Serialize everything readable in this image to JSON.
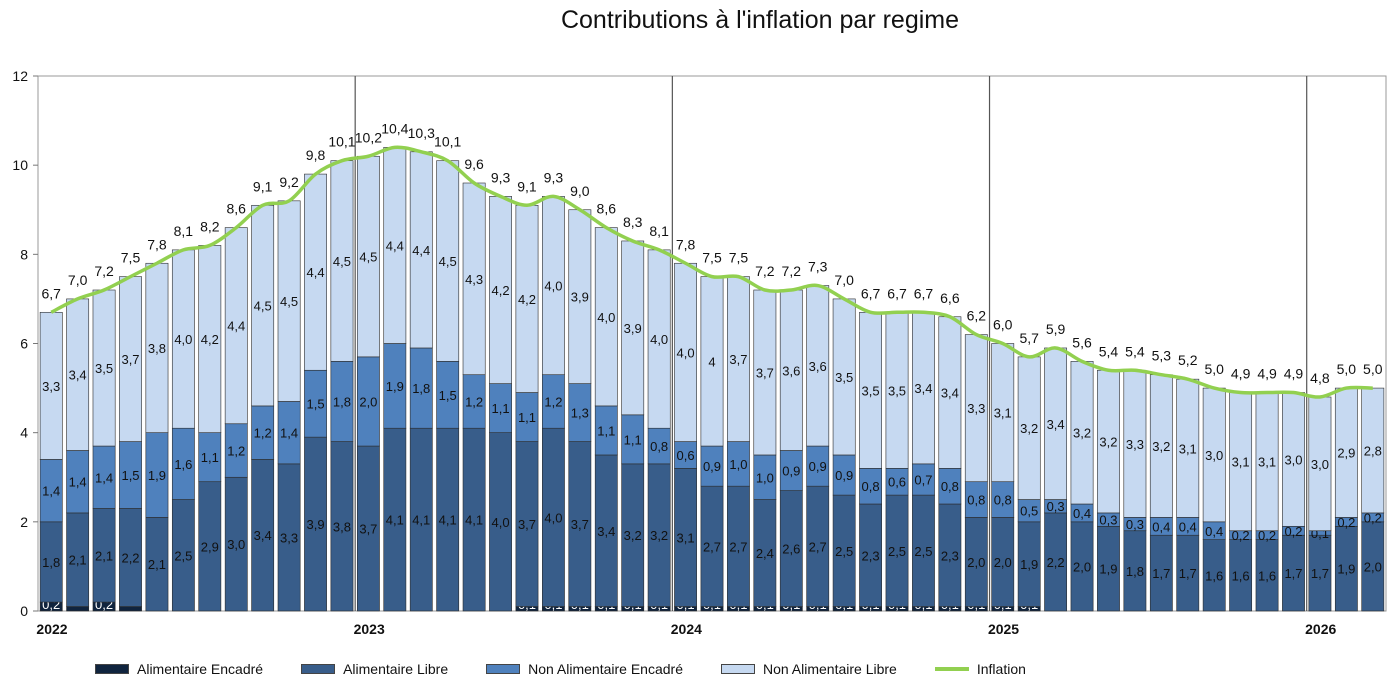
{
  "chart_data": {
    "type": "bar",
    "stacked": true,
    "title": "Contributions à l'inflation par regime",
    "xlabel": "",
    "ylabel": "",
    "ylim": [
      0,
      12
    ],
    "yticks": [
      "0",
      "2",
      "4",
      "6",
      "8",
      "10",
      "12"
    ],
    "year_labels": [
      {
        "label": "2022",
        "index": 0
      },
      {
        "label": "2023",
        "index": 12
      },
      {
        "label": "2024",
        "index": 24
      },
      {
        "label": "2025",
        "index": 36
      },
      {
        "label": "2026",
        "index": 48
      }
    ],
    "legend_position": "bottom",
    "series": [
      {
        "name": "Alimentaire Encadré",
        "color": "#10243E",
        "values": [
          0.2,
          0.1,
          0.2,
          0.1,
          0,
          0,
          0,
          0,
          0,
          0,
          0,
          0,
          0,
          0,
          0,
          0,
          0,
          0,
          0.1,
          0.1,
          0.1,
          0.1,
          0.1,
          0.1,
          0.1,
          0.1,
          0.1,
          0.1,
          0.1,
          0.1,
          0.1,
          0.1,
          0.1,
          0.1,
          0.1,
          0.1,
          0.1,
          0.1,
          0,
          0,
          0,
          0,
          0,
          0,
          0,
          0,
          0,
          0,
          0,
          0,
          0
        ],
        "labels": [
          "0,2",
          "",
          "0,2",
          "",
          "0,0",
          "",
          "0,0",
          "",
          "0,0",
          "",
          "0,0",
          "",
          "0,0",
          "0,0",
          "0,0",
          "0,0",
          "0,0",
          "0,0",
          "0,1",
          "0,1",
          "0,1",
          "0,1",
          "0,1",
          "0,1",
          "0,1",
          "0,1",
          "0,1",
          "0,1",
          "0,1",
          "0,1",
          "0,1",
          "0,1",
          "0,1",
          "0,1",
          "0,1",
          "0,1",
          "0,1",
          "0,1",
          "0,0",
          "0,0",
          "0,0",
          "0,0",
          "0,0",
          "0,0",
          "0,0",
          "0,0",
          "0,0",
          "0,0",
          "0,0",
          "0,0",
          "0,0"
        ]
      },
      {
        "name": "Alimentaire Libre",
        "color": "#385D8A",
        "values": [
          1.8,
          2.1,
          2.1,
          2.2,
          2.1,
          2.5,
          2.9,
          3.0,
          3.4,
          3.3,
          3.9,
          3.8,
          3.7,
          4.1,
          4.1,
          4.1,
          4.1,
          4.0,
          3.7,
          4.0,
          3.7,
          3.4,
          3.2,
          3.2,
          3.1,
          2.7,
          2.7,
          2.4,
          2.6,
          2.7,
          2.5,
          2.3,
          2.5,
          2.5,
          2.3,
          2.0,
          2.0,
          1.9,
          2.2,
          2.0,
          1.9,
          1.8,
          1.7,
          1.7,
          1.6,
          1.6,
          1.6,
          1.7,
          1.7,
          1.9,
          2.0
        ],
        "labels": [
          "1,8",
          "2,1",
          "2,1",
          "2,2",
          "2,1",
          "2,5",
          "2,9",
          "3,0",
          "3,4",
          "3,3",
          "3,9",
          "3,8",
          "3,7",
          "4,1",
          "4,1",
          "4,1",
          "4,1",
          "4,0",
          "3,7",
          "4,0",
          "3,7",
          "3,4",
          "3,2",
          "3,2",
          "3,1",
          "2,7",
          "2,7",
          "2,4",
          "2,6",
          "2,7",
          "2,5",
          "2,3",
          "2,5",
          "2,5",
          "2,3",
          "2,0",
          "2,0",
          "1,9",
          "2,2",
          "2,0",
          "1,9",
          "1,8",
          "1,7",
          "1,7",
          "1,6",
          "1,6",
          "1,6",
          "1,7",
          "1,7",
          "1,9",
          "2,0"
        ]
      },
      {
        "name": "Non Alimentaire Encadré",
        "color": "#4F81BD",
        "values": [
          1.4,
          1.4,
          1.4,
          1.5,
          1.9,
          1.6,
          1.1,
          1.2,
          1.2,
          1.4,
          1.5,
          1.8,
          2.0,
          1.9,
          1.8,
          1.5,
          1.2,
          1.1,
          1.1,
          1.2,
          1.3,
          1.1,
          1.1,
          0.8,
          0.6,
          0.9,
          1.0,
          1.0,
          0.9,
          0.9,
          0.9,
          0.8,
          0.6,
          0.7,
          0.8,
          0.8,
          0.8,
          0.5,
          0.3,
          0.4,
          0.3,
          0.3,
          0.4,
          0.4,
          0.4,
          0.2,
          0.2,
          0.2,
          0.1,
          0.2,
          0.2
        ],
        "labels": [
          "1,4",
          "1,4",
          "1,4",
          "1,5",
          "1,9",
          "1,6",
          "1,1",
          "1,2",
          "1,2",
          "1,4",
          "1,5",
          "1,8",
          "2,0",
          "1,9",
          "1,8",
          "1,5",
          "1,2",
          "1,1",
          "1,1",
          "1,2",
          "1,3",
          "1,1",
          "1,1",
          "0,8",
          "0,6",
          "0,9",
          "1,0",
          "1,0",
          "0,9",
          "0,9",
          "0,9",
          "0,8",
          "0,6",
          "0,7",
          "0,8",
          "0,8",
          "0,8",
          "0,5",
          "0,3",
          "0,4",
          "0,3",
          "0,3",
          "0,4",
          "0,4",
          "0,4",
          "0,2",
          "0,2",
          "0,2",
          "0,1",
          "0,2",
          "0,2"
        ]
      },
      {
        "name": "Non Alimentaire Libre",
        "color": "#C6D9F1",
        "values": [
          3.3,
          3.4,
          3.5,
          3.7,
          3.8,
          4.0,
          4.2,
          4.4,
          4.5,
          4.5,
          4.4,
          4.5,
          4.5,
          4.4,
          4.4,
          4.5,
          4.3,
          4.2,
          4.2,
          4.0,
          3.9,
          4.0,
          3.9,
          4.0,
          4.0,
          3.8,
          3.7,
          3.7,
          3.6,
          3.6,
          3.5,
          3.5,
          3.5,
          3.4,
          3.4,
          3.3,
          3.1,
          3.2,
          3.4,
          3.2,
          3.2,
          3.3,
          3.2,
          3.1,
          3.0,
          3.1,
          3.1,
          3.0,
          3.0,
          2.9,
          2.8
        ],
        "labels": [
          "3,3",
          "3,4",
          "3,5",
          "3,7",
          "3,8",
          "4,0",
          "4,2",
          "4,4",
          "4,5",
          "4,5",
          "4,4",
          "4,5",
          "4,5",
          "4,4",
          "4,4",
          "4,5",
          "4,3",
          "4,2",
          "4,2",
          "4,0",
          "3,9",
          "4,0",
          "3,9",
          "4,0",
          "4,0",
          "4",
          "3,7",
          "3,7",
          "3,6",
          "3,6",
          "3,5",
          "3,5",
          "3,5",
          "3,4",
          "3,4",
          "3,3",
          "3,1",
          "3,2",
          "3,4",
          "3,2",
          "3,2",
          "3,3",
          "3,2",
          "3,1",
          "3,0",
          "3,1",
          "3,1",
          "3,0",
          "3,0",
          "2,9",
          "2,8"
        ]
      }
    ],
    "line": {
      "name": "Inflation",
      "color": "#92D050",
      "values": [
        6.7,
        7.0,
        7.2,
        7.5,
        7.8,
        8.1,
        8.2,
        8.6,
        9.1,
        9.2,
        9.8,
        10.1,
        10.2,
        10.4,
        10.3,
        10.1,
        9.6,
        9.3,
        9.1,
        9.3,
        9.0,
        8.6,
        8.3,
        8.1,
        7.8,
        7.5,
        7.5,
        7.2,
        7.2,
        7.3,
        7.0,
        6.7,
        6.7,
        6.7,
        6.6,
        6.2,
        6.0,
        5.7,
        5.9,
        5.6,
        5.4,
        5.4,
        5.3,
        5.2,
        5.0,
        4.9,
        4.9,
        4.9,
        4.8,
        5.0,
        5.0
      ],
      "labels": [
        "6,7",
        "7,0",
        "7,2",
        "7,5",
        "7,8",
        "8,1",
        "8,2",
        "8,6",
        "9,1",
        "9,2",
        "9,8",
        "10,1",
        "10,2",
        "10,4",
        "10,3",
        "10,1",
        "9,6",
        "9,3",
        "9,1",
        "9,3",
        "9,0",
        "8,6",
        "8,3",
        "8,1",
        "7,8",
        "7,5",
        "7,5",
        "7,2",
        "7,2",
        "7,3",
        "7,0",
        "6,7",
        "6,7",
        "6,7",
        "6,6",
        "6,2",
        "6,0",
        "5,7",
        "5,9",
        "5,6",
        "5,4",
        "5,4",
        "5,3",
        "5,2",
        "5,0",
        "4,9",
        "4,9",
        "4,9",
        "4,8",
        "5,0",
        "5,0"
      ]
    }
  }
}
